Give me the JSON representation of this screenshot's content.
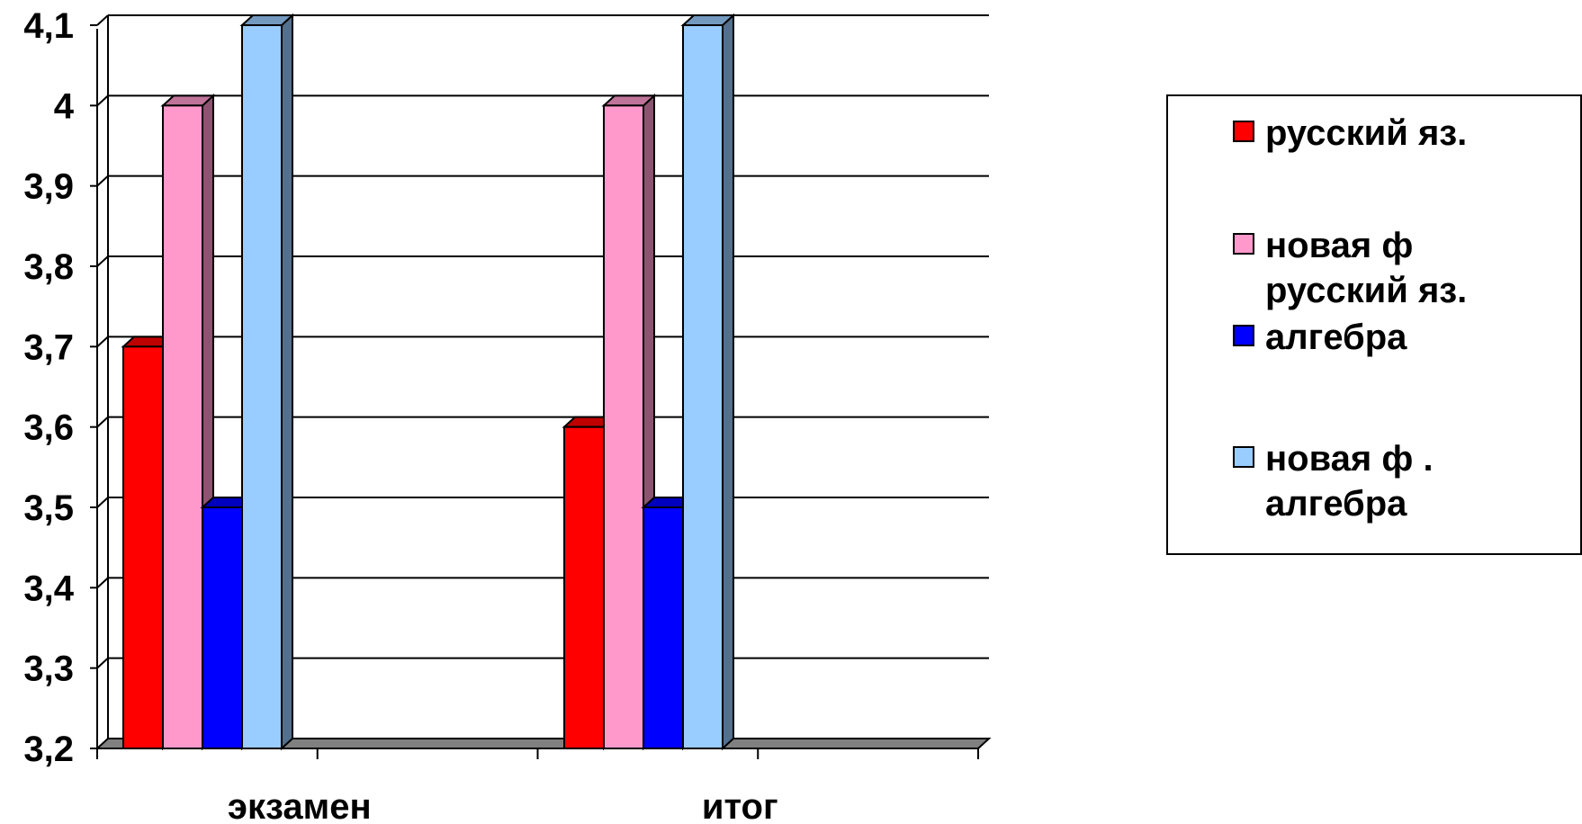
{
  "chart_data": {
    "type": "bar",
    "style": "3d-clustered-column",
    "categories": [
      "экзамен",
      "итог"
    ],
    "series": [
      {
        "name": "русский яз.",
        "color": "#ff0000",
        "values": [
          3.7,
          3.6
        ]
      },
      {
        "name": "новая ф\nрусский яз.",
        "color": "#ff99cc",
        "values": [
          4.0,
          4.0
        ]
      },
      {
        "name": "алгебра",
        "color": "#0000ff",
        "values": [
          3.5,
          3.5
        ]
      },
      {
        "name": "новая ф .\nалгебра",
        "color": "#99ccff",
        "values": [
          4.1,
          4.1
        ]
      }
    ],
    "y_ticks": [
      "3,2",
      "3,3",
      "3,4",
      "3,5",
      "3,6",
      "3,7",
      "3,8",
      "3,9",
      "4",
      "4,1"
    ],
    "ylim": [
      3.2,
      4.1
    ],
    "grid": true,
    "legend_position": "right"
  }
}
